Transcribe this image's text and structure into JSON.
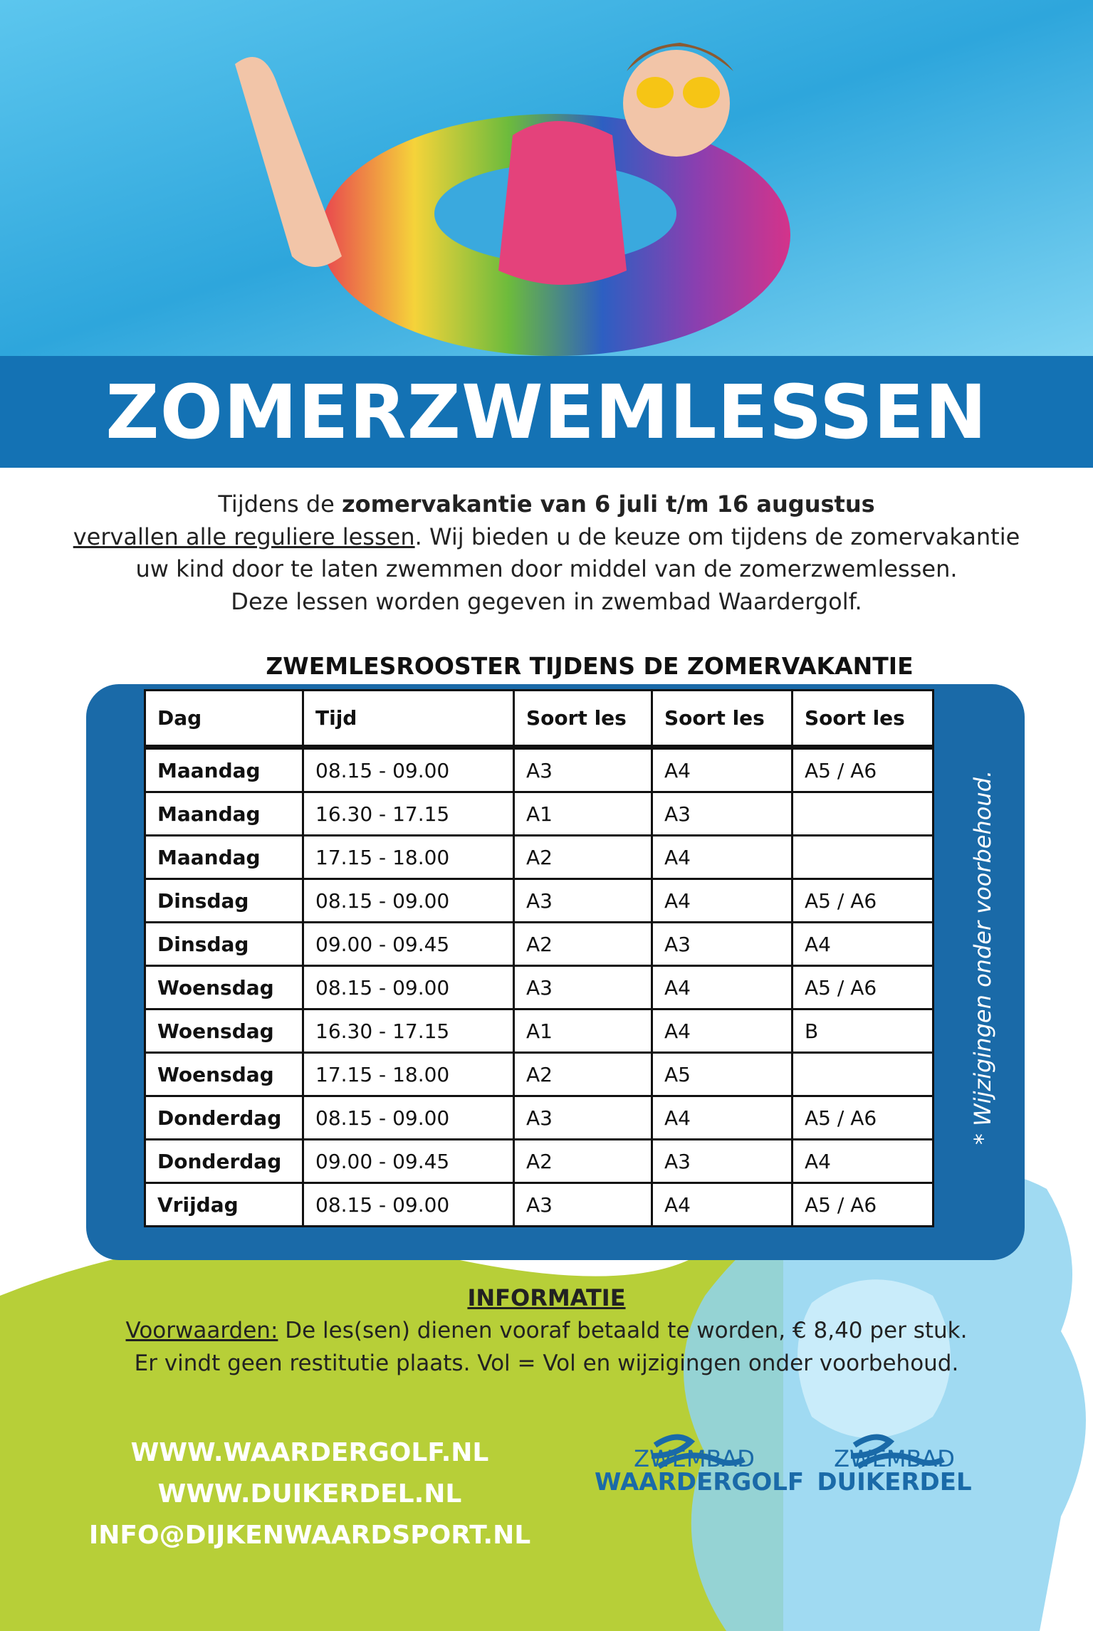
{
  "header": {
    "title": "ZOMERZWEMLESSEN"
  },
  "intro": {
    "line1_plain": "Tijdens de ",
    "line1_bold": "zomervakantie van 6 juli t/m 16 augustus",
    "line2_underlined": "vervallen alle reguliere lessen",
    "line2_rest": ". Wij bieden u de keuze om tijdens de zomervakantie",
    "line3": "uw kind door te laten zwemmen door middel van de zomerzwemlessen.",
    "line4": "Deze lessen worden gegeven in zwembad Waardergolf."
  },
  "schedule": {
    "title": "ZWEMLESROOSTER TIJDENS DE ZOMERVAKANTIE",
    "header": [
      "Dag",
      "Tijd",
      "Soort les",
      "Soort les",
      "Soort les"
    ],
    "rows": [
      [
        "Maandag",
        "08.15 - 09.00",
        "A3",
        "A4",
        "A5 / A6"
      ],
      [
        "Maandag",
        "16.30 - 17.15",
        "A1",
        "A3"
      ],
      [
        "Maandag",
        "17.15 - 18.00",
        "A2",
        "A4"
      ],
      [
        "Dinsdag",
        "08.15 - 09.00",
        "A3",
        "A4",
        "A5 / A6"
      ],
      [
        "Dinsdag",
        "09.00 - 09.45",
        "A2",
        "A3",
        "A4"
      ],
      [
        "Woensdag",
        "08.15 - 09.00",
        "A3",
        "A4",
        "A5 / A6"
      ],
      [
        "Woensdag",
        "16.30 - 17.15",
        "A1",
        "A4",
        "B"
      ],
      [
        "Woensdag",
        "17.15 - 18.00",
        "A2",
        "A5"
      ],
      [
        "Donderdag",
        "08.15 - 09.00",
        "A3",
        "A4",
        "A5 / A6"
      ],
      [
        "Donderdag",
        "09.00 - 09.45",
        "A2",
        "A3",
        "A4"
      ],
      [
        "Vrijdag",
        "08.15 - 09.00",
        "A3",
        "A4",
        "A5 / A6"
      ]
    ],
    "note": "* Wijzigingen onder voorbehoud."
  },
  "info": {
    "title": "INFORMATIE",
    "label": "Voorwaarden:",
    "line1": " De les(sen) dienen vooraf betaald te worden, € 8,40 per stuk.",
    "line2": "Er vindt geen restitutie plaats. Vol = Vol en wijzigingen onder voorbehoud."
  },
  "links": [
    "WWW.WAARDERGOLF.NL",
    "WWW.DUIKERDEL.NL",
    "INFO@DIJKENWAARDSPORT.NL"
  ],
  "logos": [
    {
      "top": "ZWEMBAD",
      "name": "WAARDERGOLF"
    },
    {
      "top": "ZWEMBAD",
      "name": "DUIKERDEL"
    }
  ]
}
